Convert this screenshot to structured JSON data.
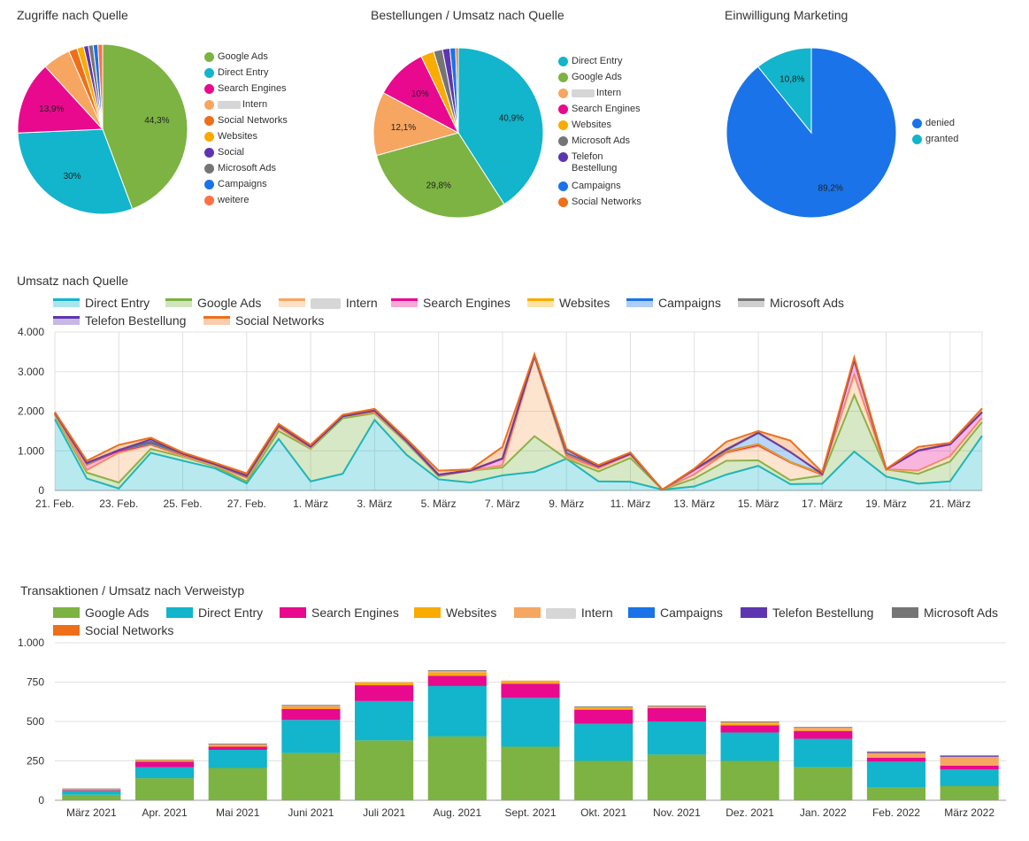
{
  "colors": {
    "google_ads": "#7cb342",
    "direct_entry": "#12b5cb",
    "search_engines": "#e8098e",
    "intern": "#f6a661",
    "social_networks": "#ee6f1a",
    "websites": "#f9ab00",
    "social": "#5e35b1",
    "microsoft_ads": "#757575",
    "campaigns": "#1a73e8",
    "telefon": "#5e35b1",
    "weitere": "#ff7043",
    "denied": "#1a73e8",
    "granted": "#12b5cb"
  },
  "pie1": {
    "title": "Zugriffe nach Quelle",
    "legend": [
      "Google Ads",
      "Direct Entry",
      "Search Engines",
      "Intern",
      "Social Networks",
      "Websites",
      "Social",
      "Microsoft Ads",
      "Campaigns",
      "weitere"
    ]
  },
  "pie2": {
    "title": "Bestellungen / Umsatz nach Quelle",
    "legend": [
      "Direct Entry",
      "Google Ads",
      "Intern",
      "Search Engines",
      "Websites",
      "Microsoft Ads",
      "Telefon Bestellung",
      "Campaigns",
      "Social Networks"
    ]
  },
  "pie3": {
    "title": "Einwilligung Marketing",
    "legend": [
      "denied",
      "granted"
    ]
  },
  "line": {
    "title": "Umsatz nach Quelle",
    "legend": [
      "Direct Entry",
      "Google Ads",
      "Intern",
      "Search Engines",
      "Websites",
      "Campaigns",
      "Microsoft Ads",
      "Telefon Bestellung",
      "Social Networks"
    ]
  },
  "bar": {
    "title": "Transaktionen / Umsatz nach Verweistyp",
    "legend": [
      "Google Ads",
      "Direct Entry",
      "Search Engines",
      "Websites",
      "Intern",
      "Campaigns",
      "Telefon Bestellung",
      "Microsoft Ads",
      "Social Networks"
    ]
  },
  "chart_data": [
    {
      "type": "pie",
      "title": "Zugriffe nach Quelle",
      "labels": [
        "Google Ads",
        "Direct Entry",
        "Search Engines",
        "Intern",
        "Social Networks",
        "Websites",
        "Social",
        "Microsoft Ads",
        "Campaigns",
        "weitere"
      ],
      "values": [
        44.3,
        30,
        13.9,
        5.3,
        1.6,
        1.3,
        0.9,
        0.9,
        0.9,
        0.9
      ],
      "value_labels": [
        "44,3%",
        "30%",
        "13,9%",
        "",
        "",
        "",
        "",
        "",
        "",
        ""
      ]
    },
    {
      "type": "pie",
      "title": "Bestellungen / Umsatz nach Quelle",
      "labels": [
        "Direct Entry",
        "Google Ads",
        "Intern",
        "Search Engines",
        "Websites",
        "Microsoft Ads",
        "Telefon Bestellung",
        "Campaigns",
        "Social Networks"
      ],
      "values": [
        40.9,
        29.8,
        12.1,
        10,
        2.5,
        1.7,
        1.4,
        1.1,
        0.5
      ],
      "value_labels": [
        "40,9%",
        "29,8%",
        "12,1%",
        "10%",
        "",
        "",
        "",
        "",
        ""
      ]
    },
    {
      "type": "pie",
      "title": "Einwilligung Marketing",
      "labels": [
        "denied",
        "granted"
      ],
      "values": [
        89.2,
        10.8
      ],
      "value_labels": [
        "89,2%",
        "10,8%"
      ]
    },
    {
      "type": "area",
      "title": "Umsatz nach Quelle",
      "stacked": true,
      "xlabel": "",
      "ylabel": "",
      "ylim": [
        0,
        4000
      ],
      "yticks": [
        0,
        1000,
        2000,
        3000,
        4000
      ],
      "ytick_labels": [
        "0",
        "1.000",
        "2.000",
        "3.000",
        "4.000"
      ],
      "x": [
        "21. Feb.",
        "22. Feb.",
        "23. Feb.",
        "24. Feb.",
        "25. Feb.",
        "26. Feb.",
        "27. Feb.",
        "28. Feb.",
        "1. März",
        "2. März",
        "3. März",
        "4. März",
        "5. März",
        "6. März",
        "7. März",
        "8. März",
        "9. März",
        "10. März",
        "11. März",
        "12. März",
        "13. März",
        "14. März",
        "15. März",
        "16. März",
        "17. März",
        "18. März",
        "19. März",
        "20. März",
        "21. März",
        "22. März"
      ],
      "xtick_labels": [
        "21. Feb.",
        "23. Feb.",
        "25. Feb.",
        "27. Feb.",
        "1. März",
        "3. März",
        "5. März",
        "7. März",
        "9. März",
        "11. März",
        "13. März",
        "15. März",
        "17. März",
        "19. März",
        "21. März"
      ],
      "series": [
        {
          "name": "Direct Entry",
          "values": [
            1800,
            300,
            50,
            950,
            750,
            560,
            180,
            1300,
            230,
            420,
            1780,
            900,
            280,
            200,
            380,
            470,
            800,
            230,
            220,
            20,
            100,
            400,
            620,
            160,
            170,
            980,
            350,
            170,
            230,
            1380
          ]
        },
        {
          "name": "Google Ads",
          "values": [
            100,
            150,
            150,
            100,
            100,
            50,
            50,
            200,
            820,
            1400,
            170,
            300,
            80,
            300,
            200,
            900,
            0,
            250,
            600,
            0,
            200,
            350,
            140,
            100,
            210,
            1430,
            180,
            250,
            500,
            350
          ]
        },
        {
          "name": "Intern",
          "values": [
            30,
            60,
            750,
            100,
            20,
            30,
            80,
            90,
            20,
            50,
            20,
            30,
            20,
            0,
            50,
            1980,
            50,
            70,
            80,
            0,
            100,
            200,
            360,
            450,
            10,
            500,
            0,
            80,
            130,
            100
          ]
        },
        {
          "name": "Search Engines",
          "values": [
            20,
            140,
            50,
            20,
            30,
            20,
            30,
            10,
            30,
            0,
            20,
            10,
            10,
            0,
            170,
            50,
            60,
            50,
            20,
            0,
            120,
            30,
            30,
            0,
            20,
            370,
            0,
            500,
            300,
            140
          ]
        },
        {
          "name": "Websites",
          "values": [
            10,
            10,
            20,
            10,
            10,
            10,
            10,
            10,
            10,
            0,
            10,
            10,
            10,
            10,
            10,
            10,
            10,
            10,
            10,
            0,
            10,
            10,
            20,
            10,
            10,
            10,
            10,
            10,
            10,
            10
          ]
        },
        {
          "name": "Campaigns",
          "values": [
            0,
            20,
            0,
            20,
            20,
            0,
            10,
            30,
            0,
            0,
            20,
            0,
            0,
            0,
            0,
            0,
            20,
            0,
            0,
            0,
            0,
            30,
            280,
            250,
            0,
            20,
            0,
            0,
            0,
            0
          ]
        },
        {
          "name": "Microsoft Ads",
          "values": [
            0,
            10,
            0,
            30,
            0,
            0,
            0,
            0,
            0,
            0,
            0,
            10,
            0,
            0,
            0,
            0,
            0,
            0,
            0,
            0,
            0,
            0,
            0,
            0,
            0,
            0,
            0,
            0,
            0,
            0
          ]
        },
        {
          "name": "Telefon Bestellung",
          "values": [
            0,
            10,
            0,
            60,
            0,
            0,
            20,
            0,
            0,
            0,
            0,
            0,
            0,
            0,
            0,
            0,
            90,
            0,
            0,
            0,
            0,
            20,
            10,
            0,
            0,
            0,
            0,
            0,
            0,
            0
          ]
        },
        {
          "name": "Social Networks",
          "values": [
            20,
            50,
            130,
            40,
            30,
            30,
            50,
            40,
            40,
            40,
            40,
            40,
            100,
            20,
            290,
            30,
            20,
            30,
            30,
            0,
            20,
            190,
            40,
            290,
            40,
            50,
            0,
            90,
            30,
            90
          ]
        }
      ]
    },
    {
      "type": "bar",
      "stacked": true,
      "title": "Transaktionen / Umsatz nach Verweistyp",
      "xlabel": "",
      "ylabel": "",
      "ylim": [
        0,
        1000
      ],
      "yticks": [
        0,
        250,
        500,
        750,
        1000
      ],
      "ytick_labels": [
        "0",
        "250",
        "500",
        "750",
        "1.000"
      ],
      "categories": [
        "März 2021",
        "Apr. 2021",
        "Mai 2021",
        "Juni 2021",
        "Juli 2021",
        "Aug. 2021",
        "Sept. 2021",
        "Okt. 2021",
        "Nov. 2021",
        "Dez. 2021",
        "Jan. 2022",
        "Feb. 2022",
        "März 2022"
      ],
      "series": [
        {
          "name": "Google Ads",
          "values": [
            35,
            140,
            205,
            300,
            380,
            405,
            340,
            250,
            290,
            250,
            210,
            80,
            90
          ]
        },
        {
          "name": "Direct Entry",
          "values": [
            25,
            70,
            115,
            210,
            250,
            320,
            310,
            235,
            210,
            180,
            180,
            165,
            105
          ]
        },
        {
          "name": "Search Engines",
          "values": [
            5,
            35,
            20,
            70,
            100,
            65,
            90,
            90,
            85,
            45,
            50,
            25,
            25
          ]
        },
        {
          "name": "Websites",
          "values": [
            2,
            5,
            5,
            10,
            15,
            20,
            10,
            10,
            5,
            10,
            5,
            5,
            5
          ]
        },
        {
          "name": "Intern",
          "values": [
            5,
            5,
            10,
            10,
            5,
            10,
            10,
            5,
            5,
            10,
            15,
            25,
            50
          ]
        },
        {
          "name": "Campaigns",
          "values": [
            0,
            0,
            0,
            0,
            0,
            0,
            0,
            0,
            0,
            0,
            0,
            0,
            0
          ]
        },
        {
          "name": "Telefon Bestellung",
          "values": [
            0,
            0,
            0,
            0,
            0,
            0,
            0,
            0,
            0,
            0,
            0,
            5,
            5
          ]
        },
        {
          "name": "Microsoft Ads",
          "values": [
            3,
            3,
            5,
            5,
            0,
            5,
            0,
            5,
            5,
            5,
            5,
            5,
            5
          ]
        },
        {
          "name": "Social Networks",
          "values": [
            0,
            0,
            0,
            0,
            0,
            0,
            0,
            0,
            0,
            0,
            0,
            0,
            0
          ]
        }
      ]
    }
  ]
}
